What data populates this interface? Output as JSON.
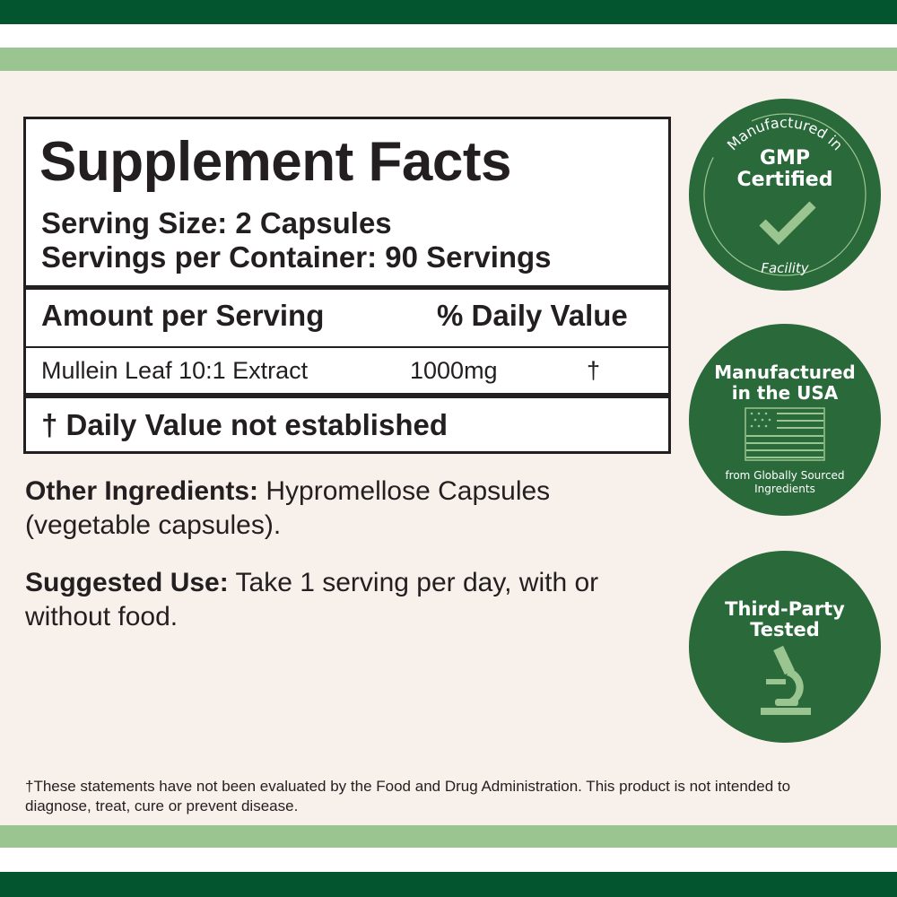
{
  "colors": {
    "dark_green": "#03552f",
    "light_green": "#9bc590",
    "badge_green": "#29693a",
    "background": "#f8f0ea"
  },
  "facts": {
    "title": "Supplement Facts",
    "serving_size": "Serving Size: 2 Capsules",
    "servings_per_container": "Servings per Container: 90 Servings",
    "header_amount": "Amount per Serving",
    "header_dv": "% Daily Value",
    "rows": [
      {
        "name": "Mullein Leaf 10:1 Extract",
        "amount": "1000mg",
        "dv": "†"
      }
    ],
    "footnote": "† Daily Value not established"
  },
  "other_ingredients": {
    "label": "Other Ingredients:",
    "text": " Hypromellose Capsules (vegetable capsules)."
  },
  "suggested_use": {
    "label": "Suggested Use:",
    "text": " Take 1 serving per day, with or without food."
  },
  "disclaimer": "†These statements have not been evaluated by the Food and Drug Administration. This product is not intended to diagnose, treat, cure or prevent disease.",
  "badges": [
    {
      "top": "Manufactured in",
      "line1": "GMP",
      "line2": "Certified",
      "bottom": "Facility",
      "icon": "checkmark-icon"
    },
    {
      "line1": "Manufactured",
      "line2": "in the USA",
      "sub1": "from Globally Sourced",
      "sub2": "Ingredients",
      "icon": "us-flag-icon"
    },
    {
      "line1": "Third-Party",
      "line2": "Tested",
      "icon": "microscope-icon"
    }
  ]
}
